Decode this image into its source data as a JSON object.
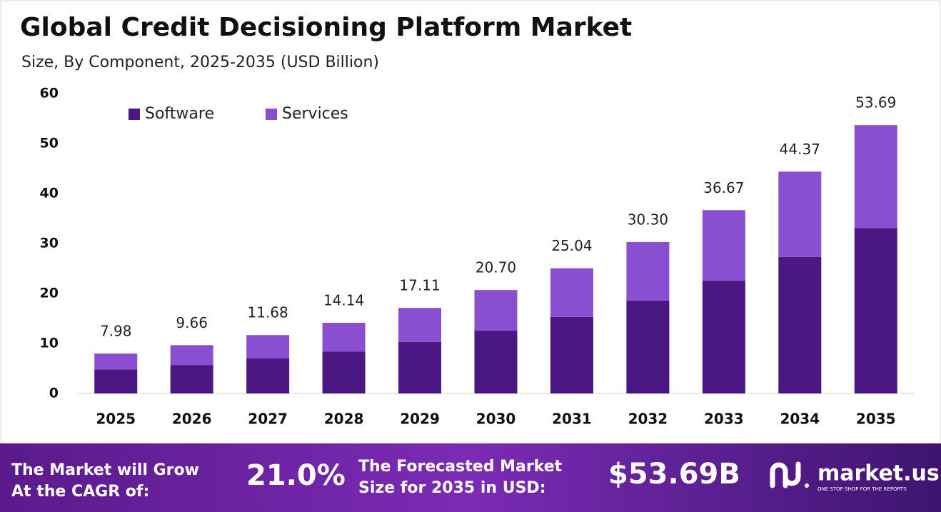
{
  "chart_data": {
    "type": "stacked-bar",
    "title": "Global Credit Decisioning Platform Market",
    "subtitle": "Size, By Component, 2025-2035 (USD Billion)",
    "categories": [
      "2025",
      "2026",
      "2027",
      "2028",
      "2029",
      "2030",
      "2031",
      "2032",
      "2033",
      "2034",
      "2035"
    ],
    "series": [
      {
        "name": "Software",
        "color": "#4b1782",
        "values": [
          4.8,
          5.7,
          7.0,
          8.4,
          10.3,
          12.6,
          15.3,
          18.6,
          22.6,
          27.3,
          33.1
        ]
      },
      {
        "name": "Services",
        "color": "#8a4fd0",
        "values": [
          3.18,
          3.96,
          4.68,
          5.74,
          6.81,
          8.1,
          9.74,
          11.7,
          14.07,
          17.07,
          20.59
        ]
      }
    ],
    "totals": [
      7.98,
      9.66,
      11.68,
      14.14,
      17.11,
      20.7,
      25.04,
      30.3,
      36.67,
      44.37,
      53.69
    ],
    "total_labels": [
      "7.98",
      "9.66",
      "11.68",
      "14.14",
      "17.11",
      "20.70",
      "25.04",
      "30.30",
      "36.67",
      "44.37",
      "53.69"
    ],
    "ylim": [
      0,
      60
    ],
    "yticks": [
      0,
      10,
      20,
      30,
      40,
      50,
      60
    ],
    "grid": false,
    "legend": "top-left"
  },
  "footer": {
    "cagr_label": [
      "The Market will Grow",
      "At the CAGR of:"
    ],
    "cagr": "21.0%",
    "forecast_label": [
      "The Forecasted Market",
      "Size for 2035 in USD:"
    ],
    "forecast": "$53.69B",
    "brand": "market.us",
    "tagline": "ONE STOP SHOP FOR THE REPORTS"
  }
}
